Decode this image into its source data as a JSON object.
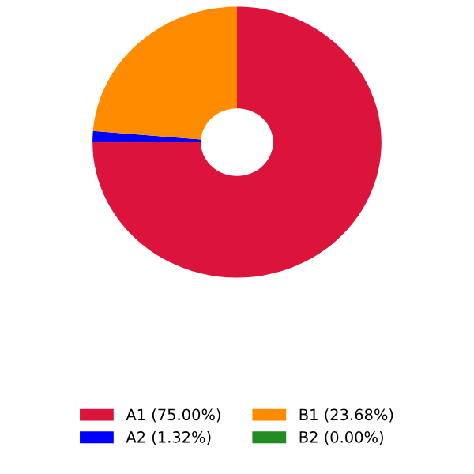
{
  "chart_data": {
    "type": "donut",
    "categories": [
      "A1 (75.00%)",
      "A2 (1.32%)",
      "B1 (23.68%)",
      "B2 (0.00%)"
    ],
    "values": [
      75.0,
      1.32,
      23.68,
      0.0
    ],
    "colors": [
      "#dc143c",
      "#0000ff",
      "#ff8c00",
      "#228b22"
    ],
    "legend": "bottom"
  }
}
